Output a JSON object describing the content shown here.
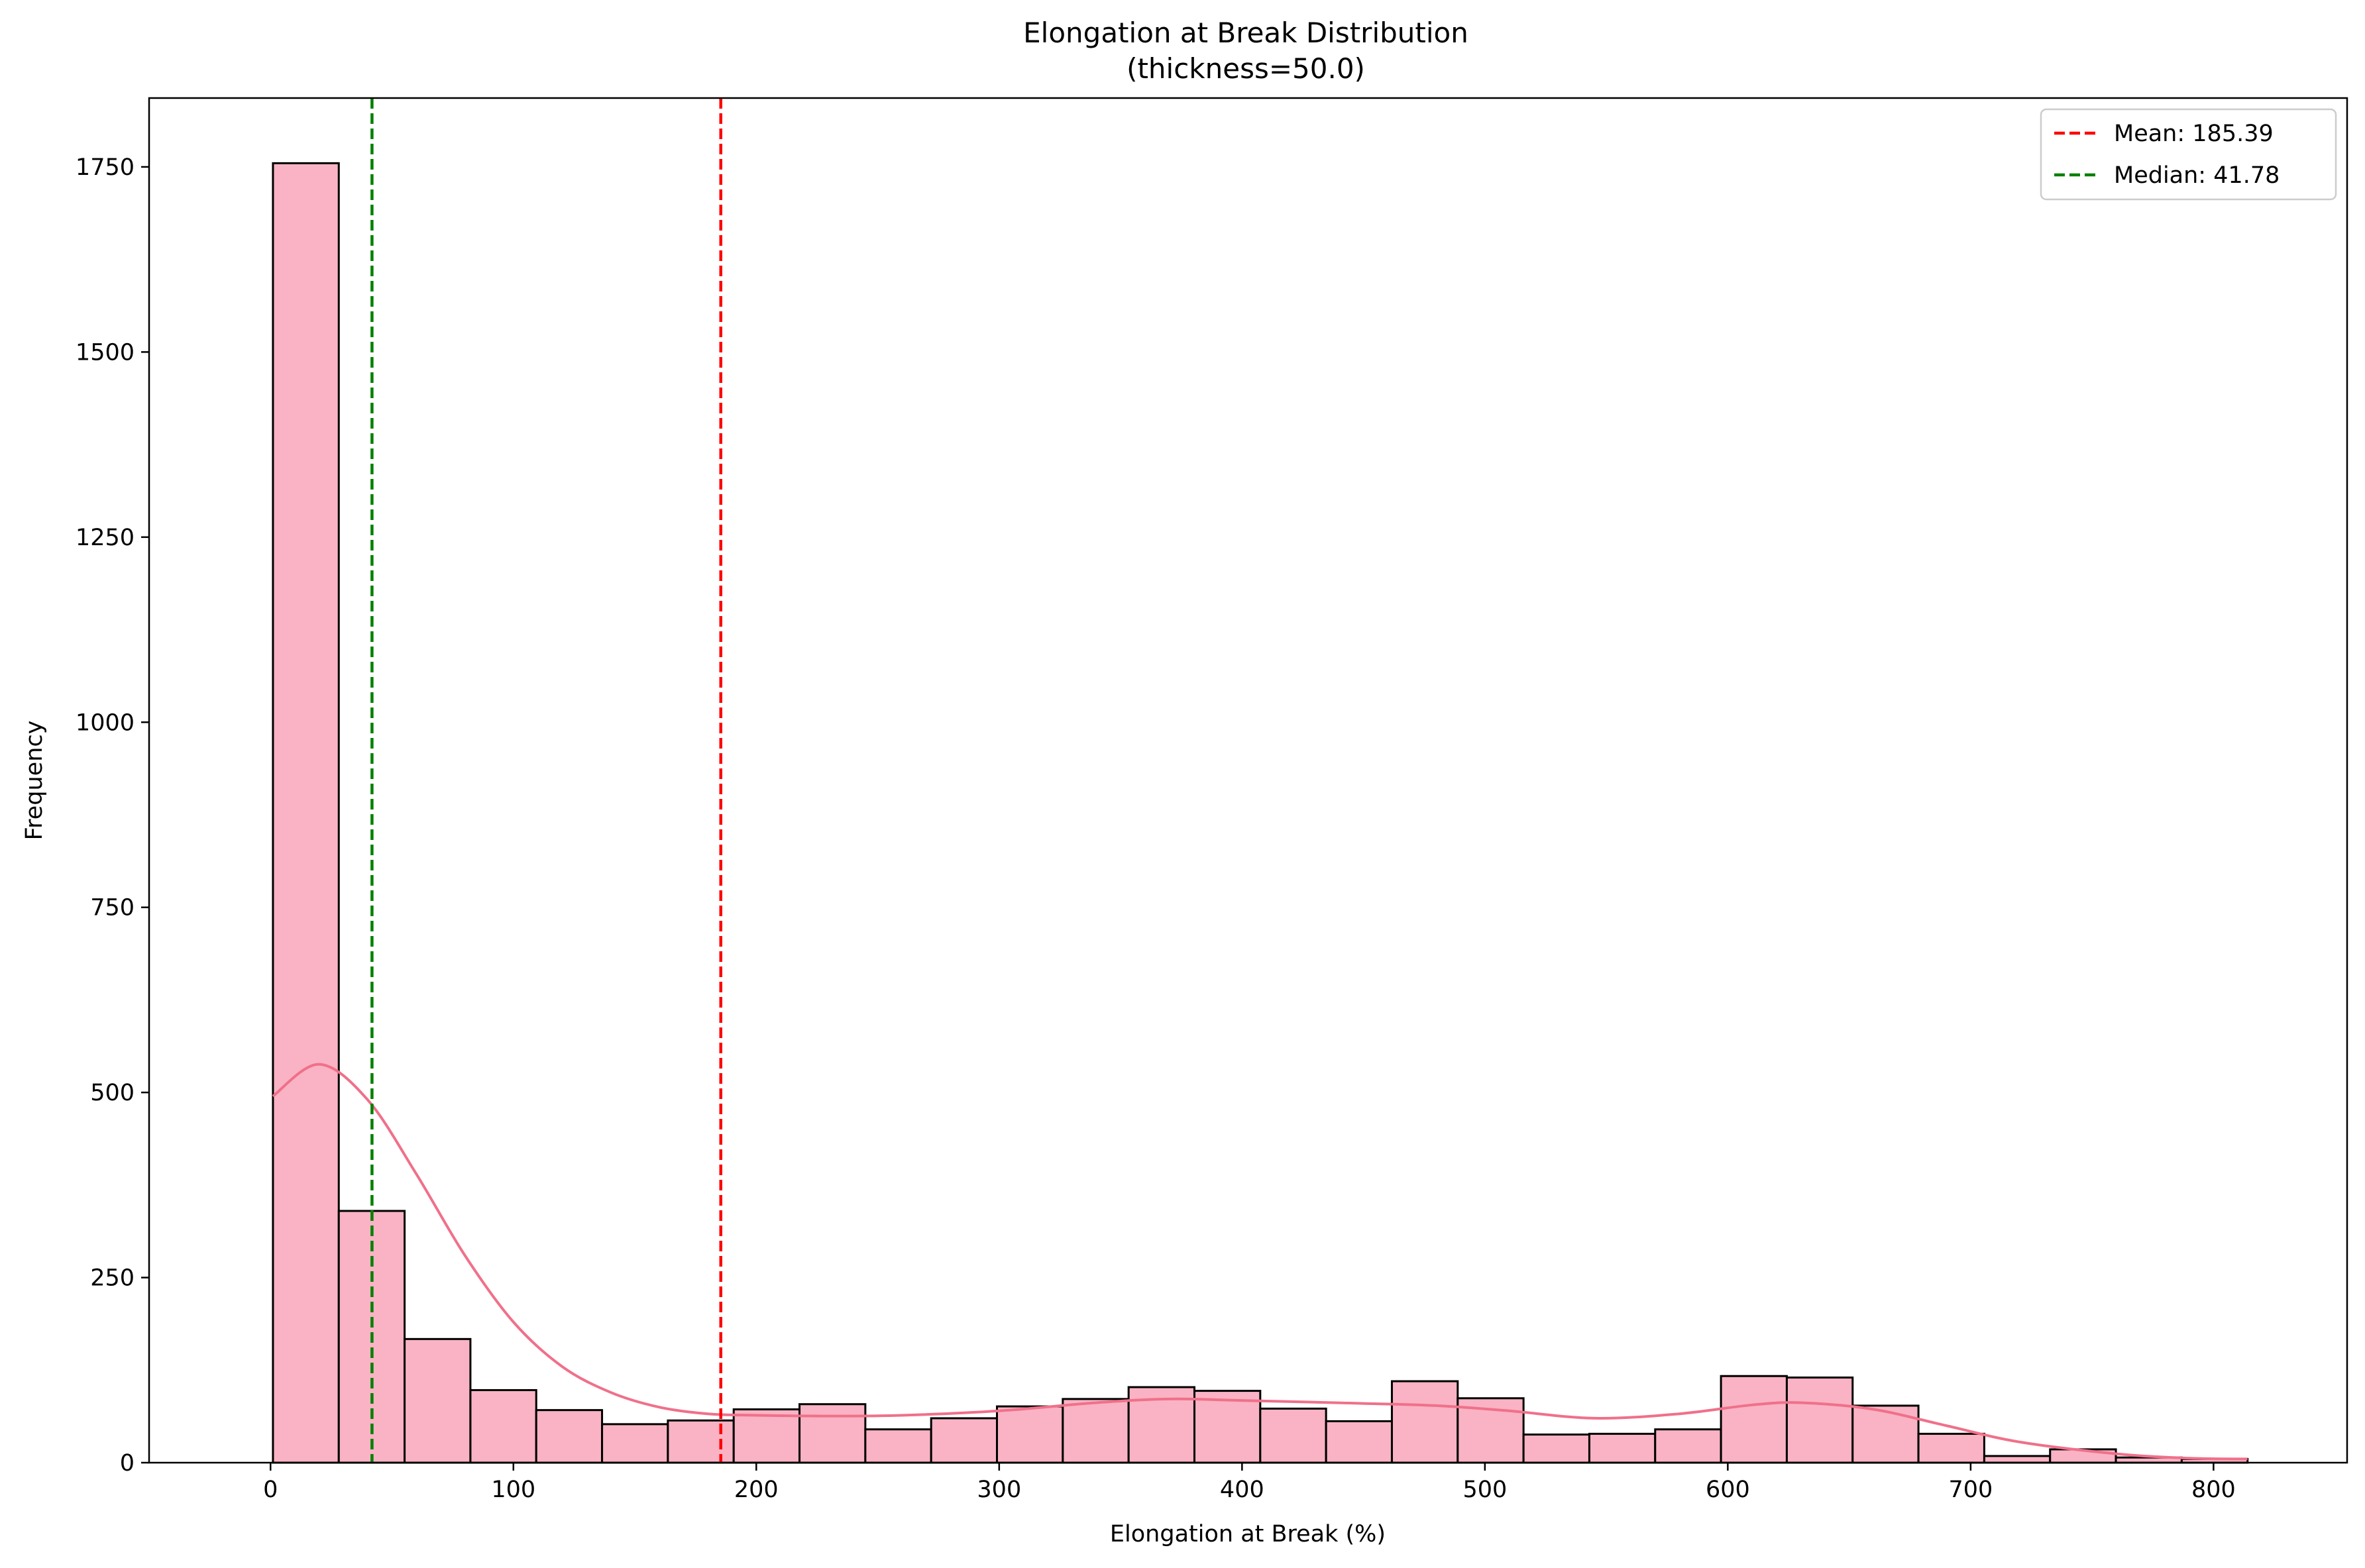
{
  "chart_data": {
    "type": "bar",
    "title": "Elongation at Break Distribution",
    "subtitle": "(thickness=50.0)",
    "xlabel": "Elongation at Break (%)",
    "ylabel": "Frequency",
    "xlim": [
      -50,
      855
    ],
    "ylim": [
      0,
      1843
    ],
    "xticks": [
      0,
      100,
      200,
      300,
      400,
      500,
      600,
      700,
      800
    ],
    "yticks": [
      0,
      250,
      500,
      750,
      1000,
      1250,
      1500,
      1750
    ],
    "bin_edges": [
      1,
      28.1,
      55.2,
      82.3,
      109.4,
      136.5,
      163.6,
      190.7,
      217.8,
      244.9,
      272,
      299.1,
      326.2,
      353.3,
      380.4,
      407.5,
      434.6,
      461.7,
      488.8,
      515.9,
      543,
      570.1,
      597.2,
      624.3,
      651.4,
      678.5,
      705.6,
      732.7,
      759.8,
      786.9,
      814
    ],
    "counts": [
      1755,
      340,
      167,
      98,
      71,
      52,
      57,
      72,
      79,
      45,
      60,
      76,
      86,
      102,
      97,
      73,
      56,
      110,
      87,
      38,
      39,
      45,
      117,
      115,
      77,
      39,
      9,
      18,
      7,
      5
    ],
    "kde": {
      "x": [
        1,
        20,
        40,
        60,
        80,
        100,
        120,
        140,
        160,
        180,
        200,
        230,
        260,
        300,
        340,
        370,
        400,
        450,
        480,
        510,
        545,
        580,
        610,
        630,
        660,
        690,
        720,
        760,
        790,
        814
      ],
      "y": [
        495,
        538,
        490,
        390,
        280,
        190,
        130,
        95,
        75,
        66,
        64,
        63,
        64,
        70,
        81,
        86,
        84,
        80,
        77,
        70,
        60,
        66,
        78,
        81,
        72,
        50,
        28,
        12,
        6,
        5
      ]
    },
    "reference_lines": [
      {
        "label": "Mean: 185.39",
        "value": 185.39,
        "color": "#ff0000"
      },
      {
        "label": "Median: 41.78",
        "value": 41.78,
        "color": "#008000"
      }
    ],
    "bar_color": "#f9b3c4",
    "bar_edge_color": "#000000",
    "kde_color": "#f0708a",
    "legend_position": "upper-right",
    "grid": false
  }
}
